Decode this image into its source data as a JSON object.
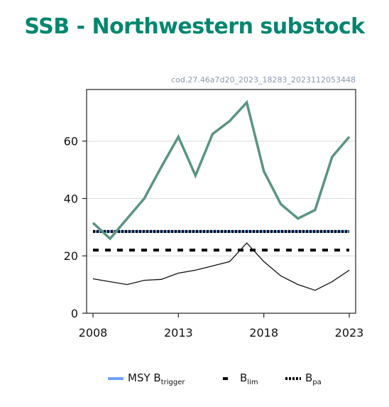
{
  "page": {
    "title": "SSB - Northwestern substock",
    "chart_id": "cod.27.46a7d20_2023_18283_2023112053448"
  },
  "colors": {
    "title": "#00866f",
    "ssb": "#5b9483",
    "low": "#111111",
    "msy": "#6fa3ef",
    "blim": "#000000",
    "bpa": "#000000",
    "grid": "#d9d9d9"
  },
  "chart_data": {
    "type": "line",
    "title": "SSB - Northwestern substock",
    "xlabel": "",
    "ylabel": "",
    "xlim": [
      2008,
      2023
    ],
    "ylim": [
      0,
      78
    ],
    "x_ticks": [
      2008,
      2013,
      2018,
      2023
    ],
    "y_ticks": [
      0,
      20,
      40,
      60
    ],
    "grid": "horizontal",
    "legend_position": "bottom",
    "series": [
      {
        "key": "ssb",
        "x": [
          2008,
          2009,
          2010,
          2011,
          2012,
          2013,
          2014,
          2015,
          2016,
          2017,
          2018,
          2019,
          2020,
          2021,
          2022,
          2023
        ],
        "values": [
          31.5,
          26,
          33,
          40,
          51,
          61.5,
          48,
          62.5,
          67,
          73.5,
          49.5,
          38,
          33,
          36,
          54.5,
          61.5
        ]
      },
      {
        "key": "low",
        "x": [
          2008,
          2009,
          2010,
          2011,
          2012,
          2013,
          2014,
          2015,
          2016,
          2017,
          2018,
          2019,
          2020,
          2021,
          2022,
          2023
        ],
        "values": [
          12,
          11,
          10,
          11.5,
          11.8,
          14,
          15,
          16.5,
          18,
          24.5,
          18,
          13,
          10,
          8,
          11,
          15
        ]
      }
    ],
    "reference_lines": [
      {
        "key": "msy",
        "value": 28.5
      },
      {
        "key": "bpa",
        "value": 28.5
      },
      {
        "key": "blim",
        "value": 22
      }
    ],
    "legend": [
      {
        "key": "msy",
        "label": "MSY B",
        "sub": "trigger"
      },
      {
        "key": "blim",
        "label": "B",
        "sub": "lim"
      },
      {
        "key": "bpa",
        "label": "B",
        "sub": "pa"
      }
    ]
  }
}
